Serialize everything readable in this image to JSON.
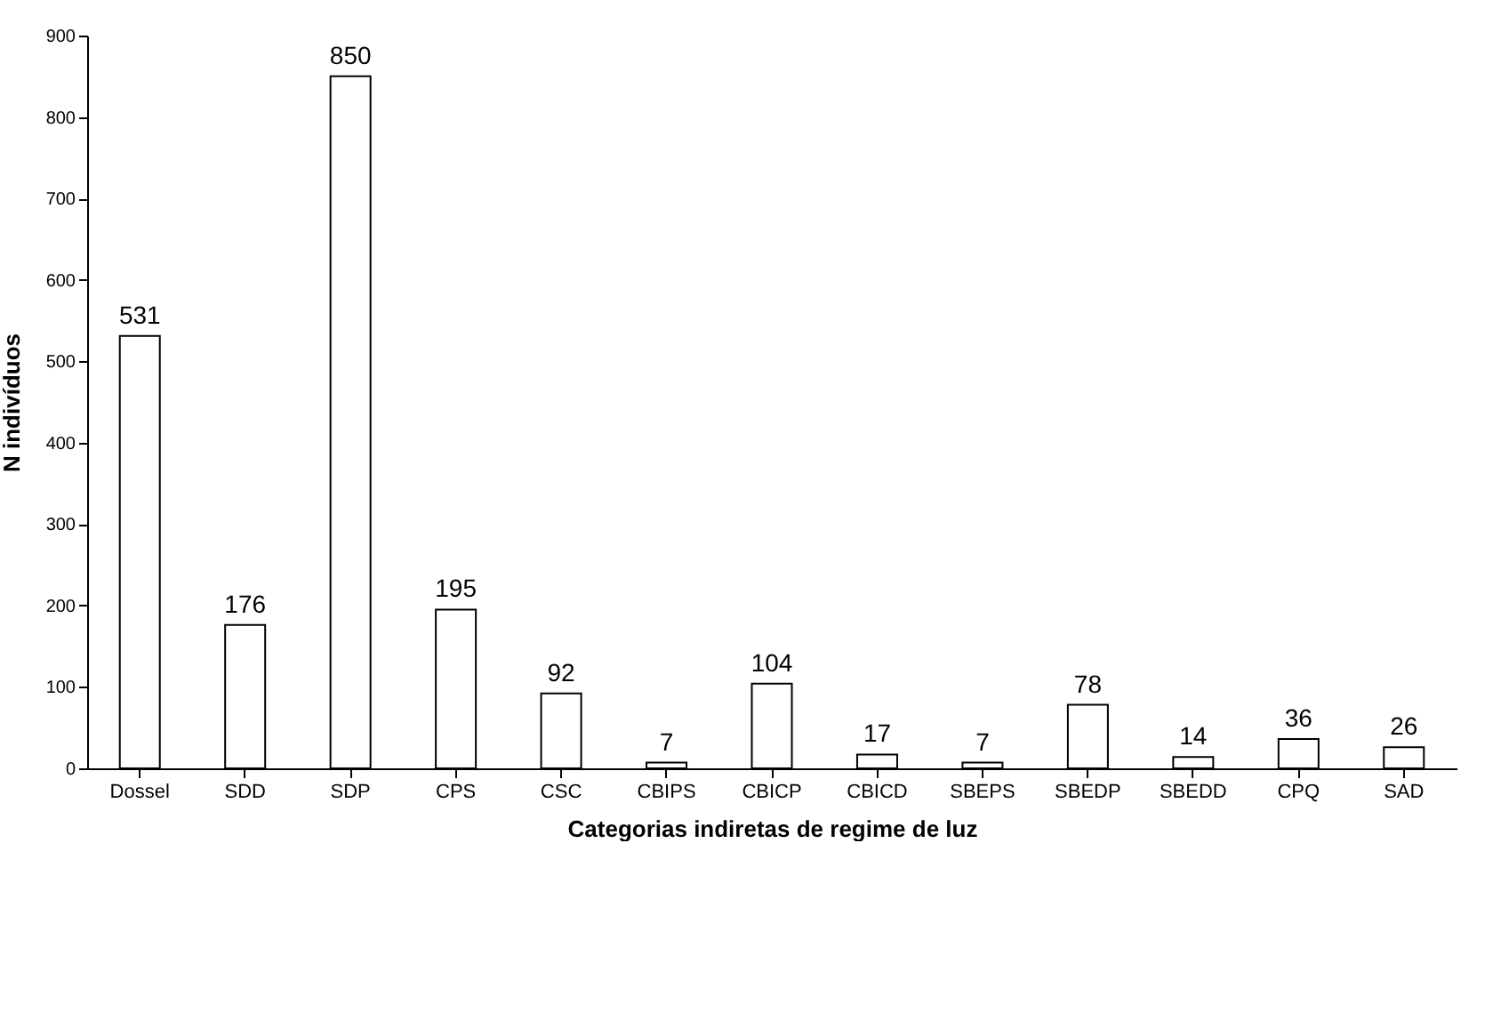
{
  "chart_data": {
    "type": "bar",
    "xlabel": "Categorias indiretas de regime de luz",
    "ylabel": "N indivíduos",
    "categories": [
      "Dossel",
      "SDD",
      "SDP",
      "CPS",
      "CSC",
      "CBIPS",
      "CBICP",
      "CBICD",
      "SBEPS",
      "SBEDP",
      "SBEDD",
      "CPQ",
      "SAD"
    ],
    "values": [
      531,
      176,
      850,
      195,
      92,
      7,
      104,
      17,
      7,
      78,
      14,
      36,
      26
    ],
    "color": "#ffffff",
    "ylim": [
      0,
      900
    ],
    "yticks": [
      0,
      100,
      200,
      300,
      400,
      500,
      600,
      700,
      800,
      900
    ],
    "grid": false,
    "data_labels": true
  }
}
